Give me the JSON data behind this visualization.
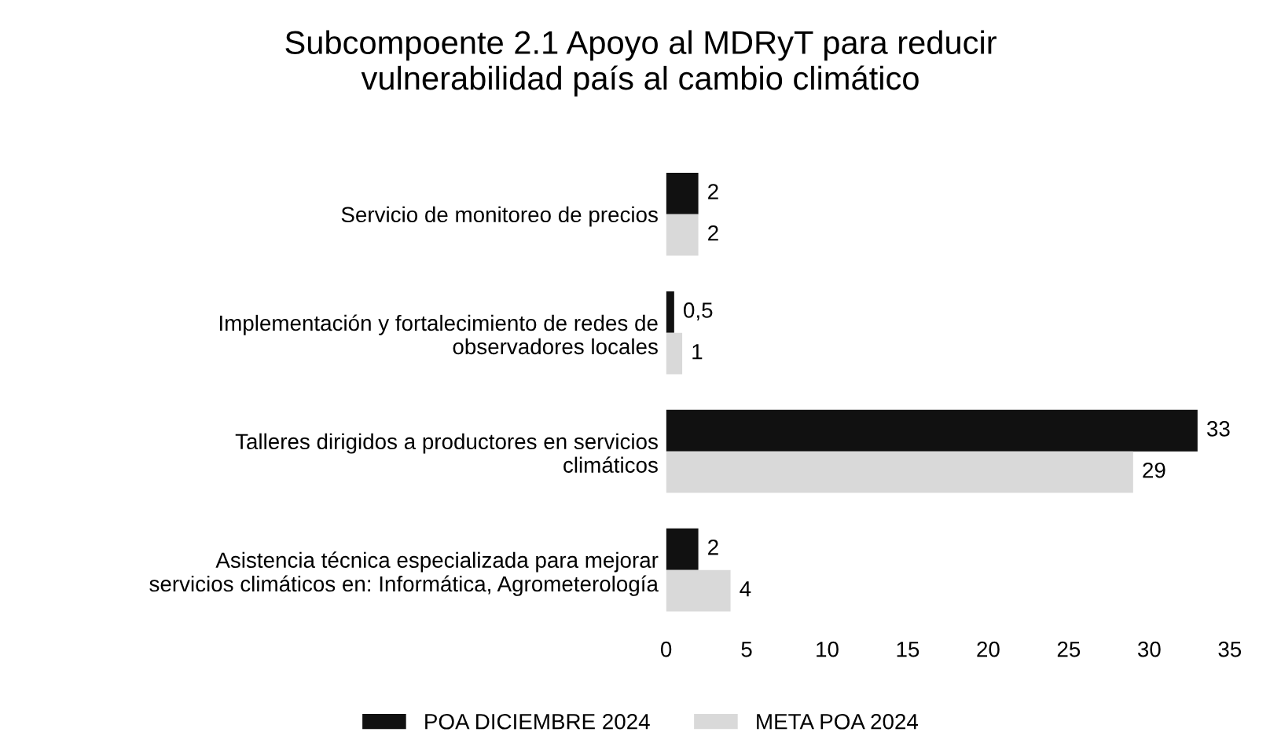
{
  "chart_data": {
    "type": "bar",
    "orientation": "horizontal",
    "title": "Subcompoente 2.1 Apoyo al MDRyT para reducir\nvulnerabilidad país al cambio climático",
    "categories": [
      "Servicio de monitoreo de precios",
      "Implementación y fortalecimiento de redes de\nobservadores locales",
      "Talleres dirigidos a productores en servicios\nclimáticos",
      "Asistencia técnica especializada para mejorar\nservicios climáticos en: Informática, Agrometerología"
    ],
    "series": [
      {
        "name": "POA DICIEMBRE 2024",
        "color": "#111111",
        "values": [
          2,
          0.5,
          33,
          2
        ],
        "value_labels": [
          "2",
          "0,5",
          "33",
          "2"
        ]
      },
      {
        "name": "META POA 2024",
        "color": "#d9d9d9",
        "values": [
          2,
          1,
          29,
          4
        ],
        "value_labels": [
          "2",
          "1",
          "29",
          "4"
        ]
      }
    ],
    "xlim": [
      0,
      35
    ],
    "xticks": [
      0,
      5,
      10,
      15,
      20,
      25,
      30,
      35
    ],
    "grid": false,
    "legend": "bottom"
  }
}
